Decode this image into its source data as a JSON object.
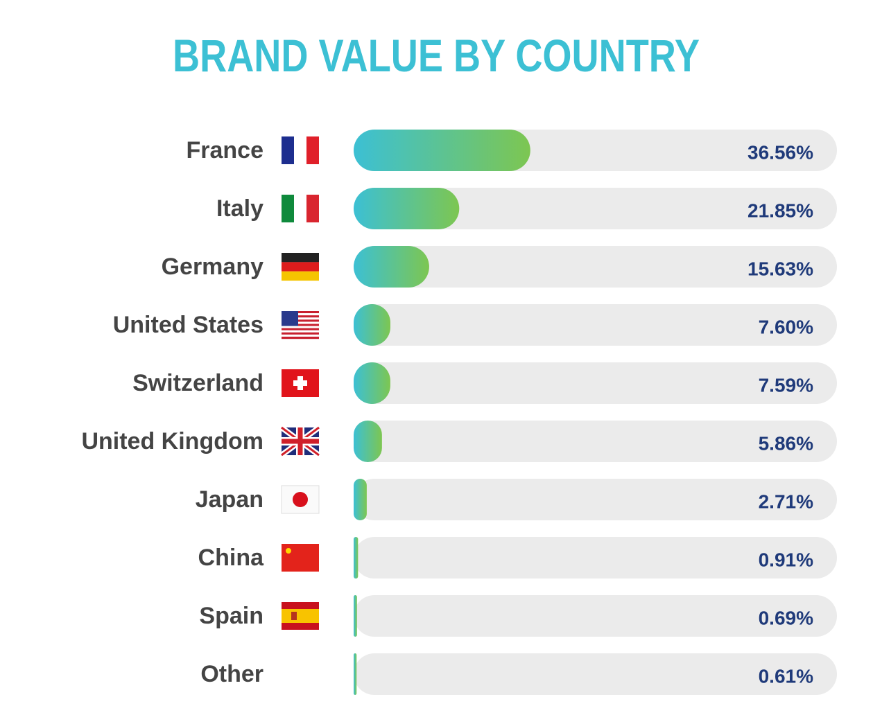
{
  "chart_data": {
    "type": "bar",
    "orientation": "horizontal",
    "title": "BRAND VALUE BY COUNTRY",
    "categories": [
      "France",
      "Italy",
      "Germany",
      "United States",
      "Switzerland",
      "United Kingdom",
      "Japan",
      "China",
      "Spain",
      "Other"
    ],
    "values": [
      36.56,
      21.85,
      15.63,
      7.6,
      7.59,
      5.86,
      2.71,
      0.91,
      0.69,
      0.61
    ],
    "value_labels": [
      "36.56%",
      "21.85%",
      "15.63%",
      "7.60%",
      "7.59%",
      "5.86%",
      "2.71%",
      "0.91%",
      "0.69%",
      "0.61%"
    ],
    "xlim": [
      0,
      100
    ],
    "gradient": [
      "#3cc0d4",
      "#7dc651"
    ],
    "track_color": "#ebebeb"
  }
}
